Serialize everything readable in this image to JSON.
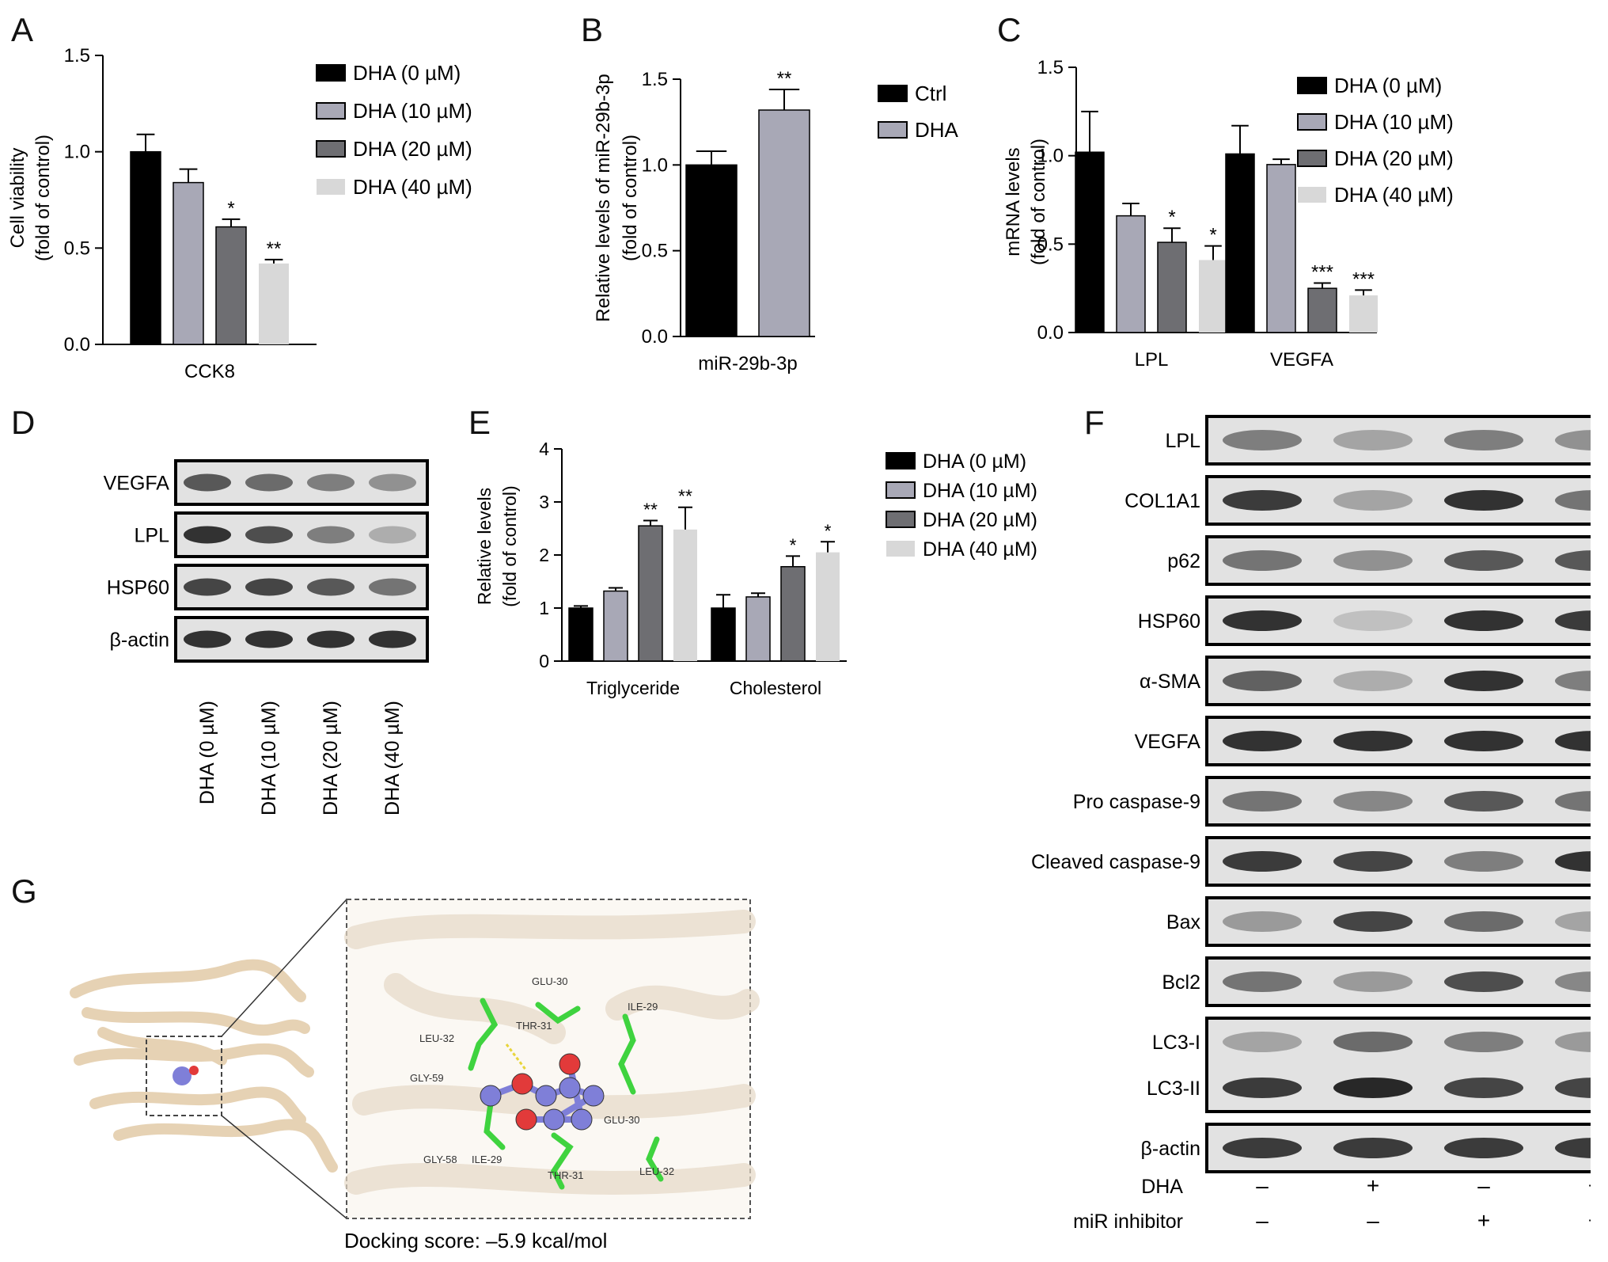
{
  "colors": {
    "black": "#000000",
    "lightgray": "#a8a8b6",
    "darkgray": "#6e6e72",
    "verylight": "#d8d8d8",
    "protein": "#e6d2b4",
    "carbon": "#3fd33f",
    "ligand": "#7f7fd8",
    "oxygen": "#e23a3a"
  },
  "panels": {
    "A": "A",
    "B": "B",
    "C": "C",
    "D": "D",
    "E": "E",
    "F": "F",
    "G": "G"
  },
  "chart_data": [
    {
      "id": "A",
      "type": "bar",
      "ylabel": [
        "Cell viability",
        "(fold of control)"
      ],
      "ylim": [
        0,
        1.5
      ],
      "yticks": [
        "0.0",
        "0.5",
        "1.0",
        "1.5"
      ],
      "categories": [
        "CCK8"
      ],
      "legend": [
        "DHA (0 µM)",
        "DHA (10 µM)",
        "DHA (20 µM)",
        "DHA (40 µM)"
      ],
      "series": [
        {
          "name": "DHA (0 µM)",
          "values": [
            1.0
          ],
          "err": [
            0.09
          ],
          "sig": [
            ""
          ],
          "color": "#000000"
        },
        {
          "name": "DHA (10 µM)",
          "values": [
            0.84
          ],
          "err": [
            0.07
          ],
          "sig": [
            ""
          ],
          "color": "#a8a8b6"
        },
        {
          "name": "DHA (20 µM)",
          "values": [
            0.61
          ],
          "err": [
            0.04
          ],
          "sig": [
            "*"
          ],
          "color": "#6e6e72"
        },
        {
          "name": "DHA (40 µM)",
          "values": [
            0.42
          ],
          "err": [
            0.02
          ],
          "sig": [
            "**"
          ],
          "color": "#d8d8d8"
        }
      ]
    },
    {
      "id": "B",
      "type": "bar",
      "ylabel": [
        "Relative levels of miR-29b-3p",
        "(fold of control)"
      ],
      "ylim": [
        0,
        1.5
      ],
      "yticks": [
        "0.0",
        "0.5",
        "1.0",
        "1.5"
      ],
      "categories": [
        "miR-29b-3p"
      ],
      "legend": [
        "Ctrl",
        "DHA"
      ],
      "series": [
        {
          "name": "Ctrl",
          "values": [
            1.0
          ],
          "err": [
            0.08
          ],
          "sig": [
            ""
          ],
          "color": "#000000"
        },
        {
          "name": "DHA",
          "values": [
            1.32
          ],
          "err": [
            0.12
          ],
          "sig": [
            "**"
          ],
          "color": "#a8a8b6"
        }
      ]
    },
    {
      "id": "C",
      "type": "bar",
      "ylabel": [
        "mRNA levels",
        "(fold of control)"
      ],
      "ylim": [
        0,
        1.5
      ],
      "yticks": [
        "0.0",
        "0.5",
        "1.0",
        "1.5"
      ],
      "categories": [
        "LPL",
        "VEGFA"
      ],
      "legend": [
        "DHA (0 µM)",
        "DHA (10 µM)",
        "DHA (20 µM)",
        "DHA (40 µM)"
      ],
      "series": [
        {
          "name": "DHA (0 µM)",
          "values": [
            1.02,
            1.01
          ],
          "err": [
            0.23,
            0.16
          ],
          "sig": [
            "",
            ""
          ],
          "color": "#000000"
        },
        {
          "name": "DHA (10 µM)",
          "values": [
            0.66,
            0.95
          ],
          "err": [
            0.07,
            0.03
          ],
          "sig": [
            "",
            ""
          ],
          "color": "#a8a8b6"
        },
        {
          "name": "DHA (20 µM)",
          "values": [
            0.51,
            0.25
          ],
          "err": [
            0.08,
            0.03
          ],
          "sig": [
            "*",
            "***"
          ],
          "color": "#6e6e72"
        },
        {
          "name": "DHA (40 µM)",
          "values": [
            0.41,
            0.21
          ],
          "err": [
            0.08,
            0.03
          ],
          "sig": [
            "*",
            "***"
          ],
          "color": "#d8d8d8"
        }
      ]
    },
    {
      "id": "E",
      "type": "bar",
      "ylabel": [
        "Relative levels",
        "(fold of control)"
      ],
      "ylim": [
        0,
        4
      ],
      "yticks": [
        "0",
        "1",
        "2",
        "3",
        "4"
      ],
      "categories": [
        "Triglyceride",
        "Cholesterol"
      ],
      "legend": [
        "DHA (0 µM)",
        "DHA (10 µM)",
        "DHA (20 µM)",
        "DHA (40 µM)"
      ],
      "series": [
        {
          "name": "DHA (0 µM)",
          "values": [
            1.0,
            1.0
          ],
          "err": [
            0.04,
            0.25
          ],
          "sig": [
            "",
            ""
          ],
          "color": "#000000"
        },
        {
          "name": "DHA (10 µM)",
          "values": [
            1.32,
            1.21
          ],
          "err": [
            0.06,
            0.07
          ],
          "sig": [
            "",
            ""
          ],
          "color": "#a8a8b6"
        },
        {
          "name": "DHA (20 µM)",
          "values": [
            2.55,
            1.78
          ],
          "err": [
            0.1,
            0.2
          ],
          "sig": [
            "**",
            "*"
          ],
          "color": "#6e6e72"
        },
        {
          "name": "DHA (40 µM)",
          "values": [
            2.48,
            2.05
          ],
          "err": [
            0.42,
            0.2
          ],
          "sig": [
            "**",
            "*"
          ],
          "color": "#d8d8d8"
        }
      ]
    }
  ],
  "blotD": {
    "rows": [
      "VEGFA",
      "LPL",
      "HSP60",
      "β-actin"
    ],
    "lanes": [
      "DHA (0 µM)",
      "DHA (10 µM)",
      "DHA (20 µM)",
      "DHA (40 µM)"
    ],
    "intensity": [
      [
        0.75,
        0.65,
        0.55,
        0.45
      ],
      [
        0.95,
        0.8,
        0.55,
        0.3
      ],
      [
        0.85,
        0.85,
        0.75,
        0.6
      ],
      [
        0.95,
        0.95,
        0.95,
        0.95
      ]
    ]
  },
  "blotF": {
    "rows": [
      "LPL",
      "COL1A1",
      "p62",
      "HSP60",
      "α-SMA",
      "VEGFA",
      "Pro caspase-9",
      "Cleaved caspase-9",
      "Bax",
      "Bcl2",
      "LC3-I",
      "LC3-II",
      "β-actin"
    ],
    "intensity": [
      [
        0.55,
        0.35,
        0.55,
        0.45
      ],
      [
        0.9,
        0.35,
        0.95,
        0.6
      ],
      [
        0.6,
        0.45,
        0.75,
        0.75
      ],
      [
        0.95,
        0.2,
        0.95,
        0.9
      ],
      [
        0.7,
        0.3,
        0.95,
        0.55
      ],
      [
        0.95,
        0.95,
        0.95,
        0.95
      ],
      [
        0.6,
        0.5,
        0.75,
        0.6
      ],
      [
        0.9,
        0.85,
        0.55,
        0.95
      ],
      [
        0.4,
        0.85,
        0.65,
        0.35
      ],
      [
        0.6,
        0.4,
        0.8,
        0.5
      ],
      [
        0.35,
        0.65,
        0.55,
        0.4
      ],
      [
        0.9,
        1.0,
        0.85,
        0.85
      ],
      [
        0.9,
        0.9,
        0.9,
        0.9
      ]
    ],
    "conditions": [
      {
        "label": "DHA",
        "signs": [
          "–",
          "+",
          "–",
          "+"
        ]
      },
      {
        "label": "miR inhibitor",
        "signs": [
          "–",
          "–",
          "+",
          "+"
        ]
      }
    ]
  },
  "docking": {
    "residues": [
      "GLU-30",
      "THR-31",
      "ILE-29",
      "LEU-32",
      "GLY-59",
      "GLY-58",
      "ILE-29",
      "GLU-30",
      "THR-31",
      "LEU-32"
    ],
    "score": "Docking score: –5.9 kcal/mol"
  }
}
